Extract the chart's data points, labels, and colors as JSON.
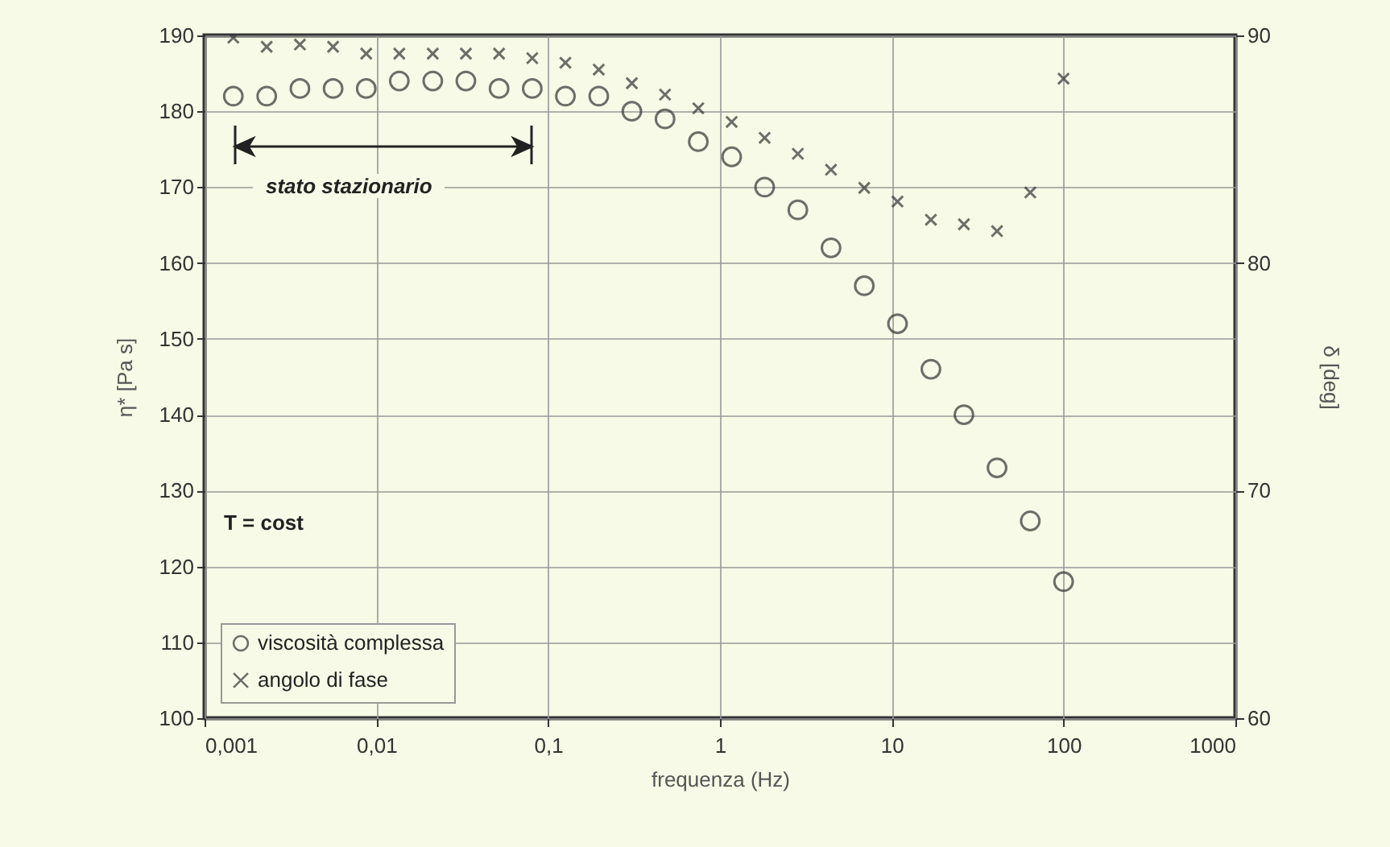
{
  "chart_data": {
    "type": "scatter",
    "xlabel": "frequenza (Hz)",
    "ylabel": "η* [Pa s]",
    "y2label": "δ [deg]",
    "x": [
      0.00147,
      0.0023,
      0.00359,
      0.0056,
      0.00873,
      0.0136,
      0.0213,
      0.0332,
      0.0518,
      0.0808,
      0.126,
      0.197,
      0.307,
      0.479,
      0.748,
      1.17,
      1.82,
      2.84,
      4.43,
      6.92,
      10.8,
      16.9,
      26.3,
      41.0,
      64.0,
      100
    ],
    "series": [
      {
        "name": "viscosità complessa",
        "color": "#333333",
        "marker": "circle",
        "values": [
          182,
          182,
          183,
          183,
          183,
          184,
          184,
          184,
          183,
          183,
          182,
          182,
          180,
          179,
          176,
          174,
          170,
          167,
          162,
          157,
          152,
          146,
          140,
          133,
          126,
          118
        ]
      },
      {
        "name": "angolo di fase",
        "color": "#333333",
        "marker": "cross",
        "axis": "y2",
        "values": [
          89.9,
          89.5,
          89.6,
          89.5,
          89.2,
          89.2,
          89.2,
          89.2,
          89.2,
          89.0,
          88.8,
          88.5,
          87.9,
          87.4,
          86.8,
          86.2,
          85.5,
          84.8,
          84.1,
          83.3,
          82.7,
          81.9,
          81.7,
          81.4,
          83.1,
          88.1
        ]
      }
    ],
    "log": "x",
    "xlim": [
      0.001,
      1000
    ],
    "xticks": [
      {
        "value": 0.001,
        "label": "0,001"
      },
      {
        "value": 0.01,
        "label": "0,01"
      },
      {
        "value": 0.1,
        "label": "0,1"
      },
      1,
      10,
      100,
      1000
    ],
    "ylim": [
      100,
      190
    ],
    "yticks": [
      100,
      110,
      120,
      130,
      140,
      150,
      160,
      170,
      180,
      190
    ],
    "y2lim": [
      60,
      90
    ],
    "y2ticks": [
      60,
      70,
      80,
      90
    ],
    "grid": true,
    "legend": "bottom left",
    "annotations": [
      "stato stazionario",
      "T = cost"
    ]
  }
}
